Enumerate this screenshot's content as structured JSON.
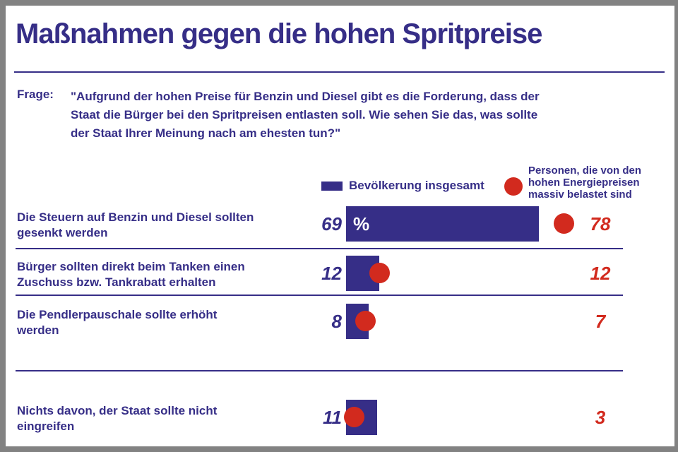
{
  "header": {
    "title": "Maßnahmen gegen die hohen Spritpreise"
  },
  "question": {
    "prefix": "Frage:",
    "text": "\"Aufgrund der hohen Preise für Benzin und Diesel gibt es die Forderung, dass der\nStaat die Bürger bei den Spritpreisen entlasten soll. Wie sehen Sie das, was sollte\nder Staat Ihrer Meinung nach am ehesten tun?\""
  },
  "legend": {
    "bar_label": "Bevölkerung insgesamt",
    "dot_label": "Personen, die von den\nhohen Energiepreisen\nmassiv belastet sind"
  },
  "unit_label": "%",
  "colors": {
    "primary": "#362E87",
    "accent": "#D22A1E",
    "frame": "#828282",
    "background": "#FFFFFF"
  },
  "rows": [
    {
      "label": "Die Steuern auf Benzin und Diesel sollten\ngesenkt werden"
    },
    {
      "label": "Bürger sollten direkt beim Tanken einen\nZuschuss bzw. Tankrabatt erhalten"
    },
    {
      "label": "Die Pendlerpauschale sollte erhöht\nwerden"
    },
    {
      "label": "Nichts davon, der Staat sollte nicht\neingreifen"
    }
  ],
  "chart_data": {
    "type": "bar",
    "orientation": "horizontal",
    "title": "Maßnahmen gegen die hohen Spritpreise",
    "unit": "percent",
    "xlim": [
      0,
      100
    ],
    "legend_position": "top",
    "grid": false,
    "categories": [
      "Die Steuern auf Benzin und Diesel sollten gesenkt werden",
      "Bürger sollten direkt beim Tanken einen Zuschuss bzw. Tankrabatt erhalten",
      "Die Pendlerpauschale sollte erhöht werden",
      "Nichts davon, der Staat sollte nicht eingreifen"
    ],
    "series": [
      {
        "name": "Bevölkerung insgesamt",
        "marker": "bar",
        "color": "#362E87",
        "values": [
          69,
          12,
          8,
          11
        ]
      },
      {
        "name": "Personen, die von den hohen Energiepreisen massiv belastet sind",
        "marker": "dot",
        "color": "#D22A1E",
        "values": [
          78,
          12,
          7,
          3
        ]
      }
    ]
  }
}
